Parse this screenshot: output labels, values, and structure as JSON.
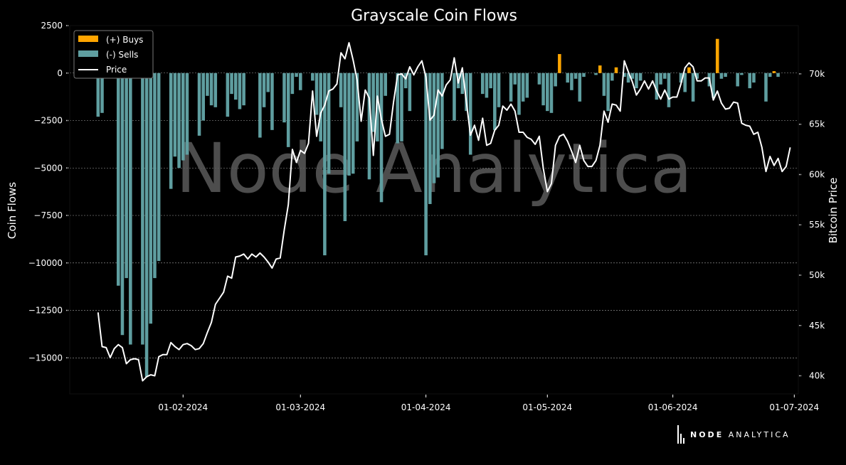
{
  "chart_data": {
    "type": "bar",
    "title": "Grayscale Coin Flows",
    "ylabel": "Coin Flows",
    "y2label": "Bitcoin Price",
    "ylim": [
      -16900,
      2500
    ],
    "y2lim": [
      38200,
      74800
    ],
    "xlim": [
      "2024-01-04",
      "2024-07-02"
    ],
    "y_ticks": [
      2500,
      0,
      -2500,
      -5000,
      -7500,
      -10000,
      -12500,
      -15000
    ],
    "y_tick_labels": [
      "2500",
      "0",
      "−2500",
      "−5000",
      "−7500",
      "−10000",
      "−12500",
      "−15000"
    ],
    "y2_ticks": [
      70000,
      65000,
      60000,
      55000,
      50000,
      45000,
      40000
    ],
    "y2_tick_labels": [
      "70k",
      "65k",
      "60k",
      "55k",
      "50k",
      "45k",
      "40k"
    ],
    "x_ticks": [
      "2024-02-01",
      "2024-03-01",
      "2024-04-01",
      "2024-05-01",
      "2024-06-01",
      "2024-07-01"
    ],
    "x_tick_labels": [
      "01-02-2024",
      "01-03-2024",
      "01-04-2024",
      "01-05-2024",
      "01-06-2024",
      "01-07-2024"
    ],
    "grid": true,
    "legend_position": "top-left",
    "watermark": "Node Analytica",
    "series": [
      {
        "name": "(+) Buys",
        "kind": "bar",
        "color": "#ffa500",
        "x": [
          "2024-05-04",
          "2024-05-14",
          "2024-05-18",
          "2024-06-05",
          "2024-06-12",
          "2024-06-26"
        ],
        "y": [
          1000,
          400,
          300,
          300,
          1800,
          100
        ]
      },
      {
        "name": "(-) Sells",
        "kind": "bar",
        "color": "#5f9ea0",
        "x": [
          "2024-01-11",
          "2024-01-12",
          "2024-01-16",
          "2024-01-17",
          "2024-01-18",
          "2024-01-19",
          "2024-01-22",
          "2024-01-23",
          "2024-01-24",
          "2024-01-25",
          "2024-01-26",
          "2024-01-29",
          "2024-01-30",
          "2024-01-31",
          "2024-02-01",
          "2024-02-02",
          "2024-02-05",
          "2024-02-06",
          "2024-02-07",
          "2024-02-08",
          "2024-02-09",
          "2024-02-12",
          "2024-02-13",
          "2024-02-14",
          "2024-02-15",
          "2024-02-16",
          "2024-02-20",
          "2024-02-21",
          "2024-02-22",
          "2024-02-23",
          "2024-02-26",
          "2024-02-27",
          "2024-02-28",
          "2024-02-29",
          "2024-03-01",
          "2024-03-04",
          "2024-03-05",
          "2024-03-06",
          "2024-03-07",
          "2024-03-08",
          "2024-03-11",
          "2024-03-12",
          "2024-03-13",
          "2024-03-14",
          "2024-03-15",
          "2024-03-18",
          "2024-03-19",
          "2024-03-20",
          "2024-03-21",
          "2024-03-22",
          "2024-03-25",
          "2024-03-26",
          "2024-03-27",
          "2024-03-28",
          "2024-04-01",
          "2024-04-02",
          "2024-04-03",
          "2024-04-04",
          "2024-04-05",
          "2024-04-08",
          "2024-04-09",
          "2024-04-10",
          "2024-04-11",
          "2024-04-12",
          "2024-04-15",
          "2024-04-16",
          "2024-04-17",
          "2024-04-18",
          "2024-04-19",
          "2024-04-22",
          "2024-04-23",
          "2024-04-24",
          "2024-04-25",
          "2024-04-26",
          "2024-04-29",
          "2024-04-30",
          "2024-05-01",
          "2024-05-02",
          "2024-05-03",
          "2024-05-06",
          "2024-05-07",
          "2024-05-08",
          "2024-05-09",
          "2024-05-10",
          "2024-05-13",
          "2024-05-15",
          "2024-05-16",
          "2024-05-17",
          "2024-05-20",
          "2024-05-21",
          "2024-05-22",
          "2024-05-23",
          "2024-05-24",
          "2024-05-28",
          "2024-05-29",
          "2024-05-30",
          "2024-05-31",
          "2024-06-03",
          "2024-06-04",
          "2024-06-06",
          "2024-06-07",
          "2024-06-10",
          "2024-06-11",
          "2024-06-13",
          "2024-06-14",
          "2024-06-17",
          "2024-06-18",
          "2024-06-20",
          "2024-06-21",
          "2024-06-24",
          "2024-06-25",
          "2024-06-27"
        ],
        "y": [
          -2300,
          -2100,
          -11200,
          -13800,
          -10800,
          -14300,
          -14300,
          -16000,
          -13200,
          -10800,
          -9900,
          -6100,
          -4400,
          -5000,
          -4600,
          -4300,
          -3300,
          -2500,
          -1200,
          -1700,
          -1800,
          -2300,
          -1100,
          -1400,
          -1900,
          -1700,
          -3400,
          -1800,
          -1000,
          -3000,
          -2600,
          -3900,
          -1100,
          -200,
          -900,
          -400,
          -2200,
          -3600,
          -9600,
          -5300,
          -1800,
          -7800,
          -5400,
          -5300,
          -3600,
          -5600,
          -3100,
          -3600,
          -6800,
          -1200,
          -3700,
          -3600,
          -800,
          -2000,
          -9600,
          -6900,
          -5800,
          -5500,
          -4000,
          -2500,
          -800,
          -1100,
          -2000,
          -4300,
          -1100,
          -1300,
          -800,
          -3000,
          -1800,
          -1500,
          -600,
          -2200,
          -1500,
          -1300,
          -600,
          -1700,
          -2000,
          -2100,
          -700,
          -500,
          -900,
          -300,
          -1500,
          -200,
          -100,
          -1200,
          -2000,
          -400,
          -200,
          -500,
          -300,
          -800,
          -400,
          -1400,
          -600,
          -300,
          -1800,
          -500,
          -1000,
          -1500,
          -300,
          -700,
          -1300,
          -300,
          -200,
          -700,
          -100,
          -800,
          -500,
          -1500,
          -200,
          -200
        ]
      },
      {
        "name": "Price",
        "kind": "line",
        "color": "#ffffff",
        "x": [
          "2024-01-11",
          "2024-01-12",
          "2024-01-13",
          "2024-01-14",
          "2024-01-15",
          "2024-01-16",
          "2024-01-17",
          "2024-01-18",
          "2024-01-19",
          "2024-01-20",
          "2024-01-21",
          "2024-01-22",
          "2024-01-23",
          "2024-01-24",
          "2024-01-25",
          "2024-01-26",
          "2024-01-27",
          "2024-01-28",
          "2024-01-29",
          "2024-01-30",
          "2024-01-31",
          "2024-02-01",
          "2024-02-02",
          "2024-02-03",
          "2024-02-04",
          "2024-02-05",
          "2024-02-06",
          "2024-02-07",
          "2024-02-08",
          "2024-02-09",
          "2024-02-10",
          "2024-02-11",
          "2024-02-12",
          "2024-02-13",
          "2024-02-14",
          "2024-02-15",
          "2024-02-16",
          "2024-02-17",
          "2024-02-18",
          "2024-02-19",
          "2024-02-20",
          "2024-02-21",
          "2024-02-22",
          "2024-02-23",
          "2024-02-24",
          "2024-02-25",
          "2024-02-26",
          "2024-02-27",
          "2024-02-28",
          "2024-02-29",
          "2024-03-01",
          "2024-03-02",
          "2024-03-03",
          "2024-03-04",
          "2024-03-05",
          "2024-03-06",
          "2024-03-07",
          "2024-03-08",
          "2024-03-09",
          "2024-03-10",
          "2024-03-11",
          "2024-03-12",
          "2024-03-13",
          "2024-03-14",
          "2024-03-15",
          "2024-03-16",
          "2024-03-17",
          "2024-03-18",
          "2024-03-19",
          "2024-03-20",
          "2024-03-21",
          "2024-03-22",
          "2024-03-23",
          "2024-03-24",
          "2024-03-25",
          "2024-03-26",
          "2024-03-27",
          "2024-03-28",
          "2024-03-29",
          "2024-03-30",
          "2024-03-31",
          "2024-04-01",
          "2024-04-02",
          "2024-04-03",
          "2024-04-04",
          "2024-04-05",
          "2024-04-06",
          "2024-04-07",
          "2024-04-08",
          "2024-04-09",
          "2024-04-10",
          "2024-04-11",
          "2024-04-12",
          "2024-04-13",
          "2024-04-14",
          "2024-04-15",
          "2024-04-16",
          "2024-04-17",
          "2024-04-18",
          "2024-04-19",
          "2024-04-20",
          "2024-04-21",
          "2024-04-22",
          "2024-04-23",
          "2024-04-24",
          "2024-04-25",
          "2024-04-26",
          "2024-04-27",
          "2024-04-28",
          "2024-04-29",
          "2024-04-30",
          "2024-05-01",
          "2024-05-02",
          "2024-05-03",
          "2024-05-04",
          "2024-05-05",
          "2024-05-06",
          "2024-05-07",
          "2024-05-08",
          "2024-05-09",
          "2024-05-10",
          "2024-05-11",
          "2024-05-12",
          "2024-05-13",
          "2024-05-14",
          "2024-05-15",
          "2024-05-16",
          "2024-05-17",
          "2024-05-18",
          "2024-05-19",
          "2024-05-20",
          "2024-05-21",
          "2024-05-22",
          "2024-05-23",
          "2024-05-24",
          "2024-05-25",
          "2024-05-26",
          "2024-05-27",
          "2024-05-28",
          "2024-05-29",
          "2024-05-30",
          "2024-05-31",
          "2024-06-01",
          "2024-06-02",
          "2024-06-03",
          "2024-06-04",
          "2024-06-05",
          "2024-06-06",
          "2024-06-07",
          "2024-06-08",
          "2024-06-09",
          "2024-06-10",
          "2024-06-11",
          "2024-06-12",
          "2024-06-13",
          "2024-06-14",
          "2024-06-15",
          "2024-06-16",
          "2024-06-17",
          "2024-06-18",
          "2024-06-19",
          "2024-06-20",
          "2024-06-21",
          "2024-06-22",
          "2024-06-23",
          "2024-06-24",
          "2024-06-25",
          "2024-06-26",
          "2024-06-27",
          "2024-06-28",
          "2024-06-29",
          "2024-06-30"
        ],
        "y": [
          46300,
          42900,
          42800,
          41800,
          42700,
          43100,
          42800,
          41200,
          41600,
          41700,
          41600,
          39500,
          39900,
          40100,
          40000,
          41900,
          42100,
          42100,
          43300,
          42900,
          42600,
          43100,
          43200,
          43000,
          42600,
          42700,
          43200,
          44300,
          45300,
          47100,
          47700,
          48300,
          49900,
          49700,
          51800,
          51900,
          52100,
          51600,
          52100,
          51800,
          52200,
          51800,
          51300,
          50700,
          51600,
          51700,
          54500,
          57000,
          62500,
          61200,
          62400,
          62100,
          63100,
          68300,
          63800,
          66100,
          66900,
          68300,
          68500,
          69000,
          72100,
          71500,
          73100,
          71400,
          69400,
          65300,
          68400,
          67600,
          61900,
          67800,
          65500,
          63800,
          64000,
          67200,
          69900,
          70000,
          69500,
          70700,
          69900,
          70700,
          71300,
          69700,
          65400,
          65900,
          68400,
          67800,
          68900,
          69400,
          71600,
          69100,
          70600,
          67200,
          63900,
          64900,
          63400,
          65600,
          62900,
          63100,
          64400,
          64900,
          66800,
          66400,
          67000,
          66300,
          64200,
          64200,
          63700,
          63500,
          63000,
          63800,
          60600,
          58300,
          59100,
          62900,
          63800,
          64000,
          63300,
          62300,
          61200,
          62900,
          61400,
          60800,
          60800,
          61400,
          62900,
          66300,
          65200,
          67000,
          66900,
          66300,
          71300,
          70200,
          69200,
          67900,
          68500,
          69300,
          68500,
          69300,
          68300,
          67500,
          68400,
          67500,
          67700,
          67700,
          69000,
          70600,
          71100,
          70700,
          69300,
          69300,
          69600,
          69600,
          67400,
          68300,
          67100,
          66500,
          66600,
          67200,
          67100,
          65100,
          64900,
          64800,
          64000,
          64200,
          62700,
          60300,
          61800,
          60900,
          61600,
          60300,
          60800,
          62700
        ]
      }
    ]
  },
  "brand": {
    "strong": "NODE",
    "rest": "ANALYTICA"
  }
}
